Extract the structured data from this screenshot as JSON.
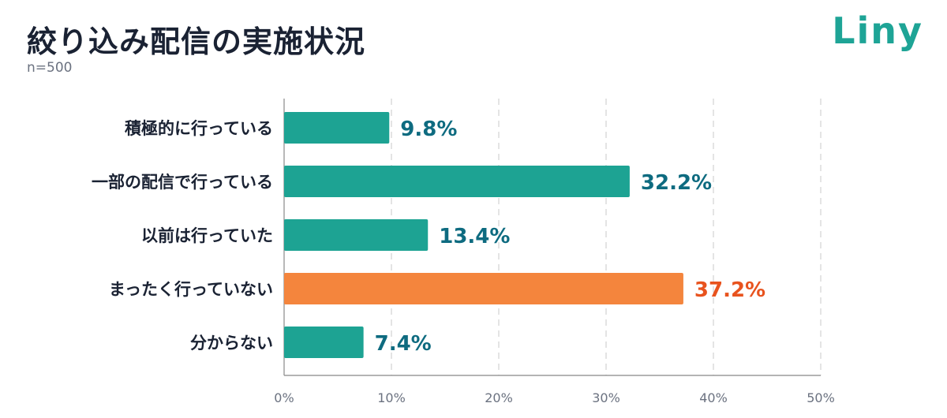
{
  "header": {
    "title": "絞り込み配信の実施状況",
    "subtitle": "n=500",
    "logo_text": "Liny"
  },
  "chart_data": {
    "type": "bar",
    "orientation": "horizontal",
    "title": "絞り込み配信の実施状況",
    "subtitle": "n=500",
    "categories": [
      "積極的に行っている",
      "一部の配信で行っている",
      "以前は行っていた",
      "まったく行っていない",
      "分からない"
    ],
    "values": [
      9.8,
      32.2,
      13.4,
      37.2,
      7.4
    ],
    "value_labels": [
      "9.8%",
      "32.2%",
      "13.4%",
      "37.2%",
      "7.4%"
    ],
    "highlight_index": 3,
    "xlim": [
      0,
      50
    ],
    "xticks": [
      0,
      10,
      20,
      30,
      40,
      50
    ],
    "xtick_labels": [
      "0%",
      "10%",
      "20%",
      "30%",
      "40%",
      "50%"
    ],
    "grid": "vertical-dashed",
    "colors": {
      "bar": "#1da393",
      "highlight_bar": "#f4853d",
      "label": "#0e6b80",
      "highlight_label": "#e8531e",
      "grid": "#c8c8c8",
      "axis": "#888888"
    }
  }
}
